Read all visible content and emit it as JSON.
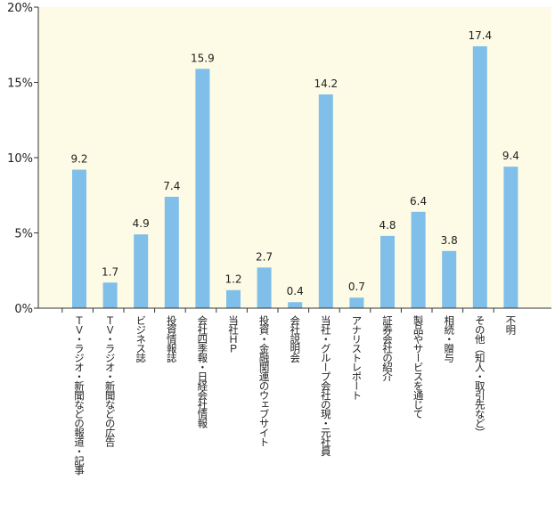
{
  "chart_data": {
    "type": "bar",
    "title": "",
    "xlabel": "",
    "ylabel": "",
    "ylim": [
      0,
      20
    ],
    "yticks": [
      0,
      5,
      10,
      15,
      20
    ],
    "ytick_labels": [
      "0%",
      "5%",
      "10%",
      "15%",
      "20%"
    ],
    "grid": false,
    "colors": {
      "plot_background": "#fdfbe5",
      "bar": "#7fbfe9",
      "axis": "#333333"
    },
    "categories": [
      "ＴＶ・ラジオ・新聞などの報道・記事",
      "ＴＶ・ラジオ・新聞などの広告",
      "ビジネス誌",
      "投資情報誌",
      "会社四季報・日経会社情報",
      "当社ＨＰ",
      "投資・金融関連のウェブサイト",
      "会社説明会",
      "当社・グループ会社の現・元社員",
      "アナリストレポート",
      "証券会社の紹介",
      "製品やサービスを通じて",
      "相続・贈与",
      "その他（知人・取引先など）",
      "不明"
    ],
    "values": [
      9.2,
      1.7,
      4.9,
      7.4,
      15.9,
      1.2,
      2.7,
      0.4,
      14.2,
      0.7,
      4.8,
      6.4,
      3.8,
      17.4,
      9.4
    ],
    "data_labels": [
      "9.2",
      "1.7",
      "4.9",
      "7.4",
      "15.9",
      "1.2",
      "2.7",
      "0.4",
      "14.2",
      "0.7",
      "4.8",
      "6.4",
      "3.8",
      "17.4",
      "9.4"
    ]
  }
}
